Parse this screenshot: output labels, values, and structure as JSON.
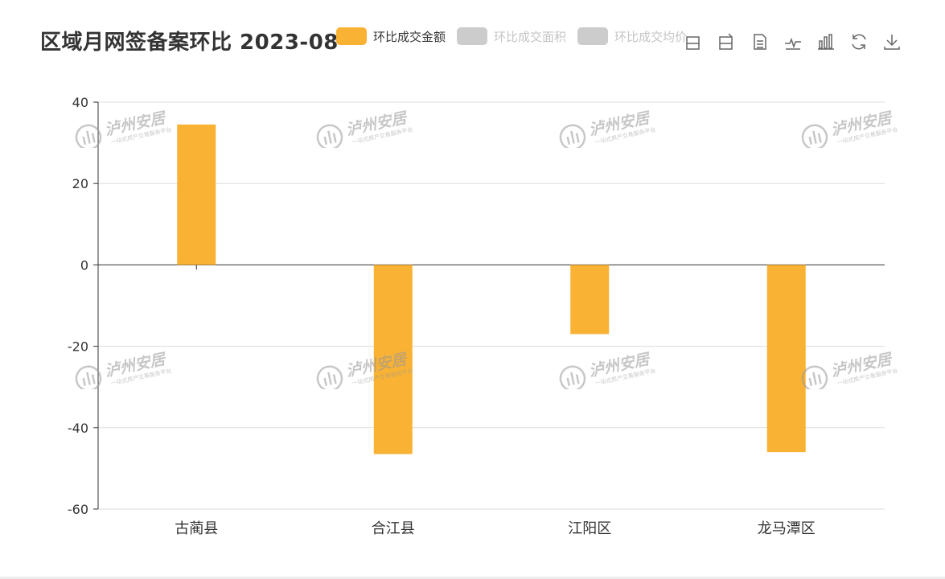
{
  "title": "区域月网签备案环比 2023-08",
  "legend": [
    {
      "label": "环比成交金额",
      "color": "#f9b233",
      "active": true
    },
    {
      "label": "环比成交面积",
      "color": "#cccccc",
      "active": false
    },
    {
      "label": "环比成交均价",
      "color": "#cccccc",
      "active": false
    }
  ],
  "toolbox": [
    {
      "name": "zoom-icon"
    },
    {
      "name": "zoom-reset-icon"
    },
    {
      "name": "data-view-icon"
    },
    {
      "name": "line-chart-icon"
    },
    {
      "name": "bar-chart-icon"
    },
    {
      "name": "restore-icon"
    },
    {
      "name": "download-icon"
    }
  ],
  "watermark": {
    "brand": "泸州安居",
    "tagline": "一站式房产交易服务平台"
  },
  "chart_data": {
    "type": "bar",
    "categories": [
      "古蔺县",
      "合江县",
      "江阳区",
      "龙马潭区"
    ],
    "series": [
      {
        "name": "环比成交金额",
        "values": [
          34.5,
          -46.5,
          -17,
          -46
        ],
        "color": "#f9b233"
      }
    ],
    "ylim": [
      -60,
      40
    ],
    "yticks": [
      -60,
      -40,
      -20,
      0,
      20,
      40
    ],
    "grid": true,
    "legend_position": "top"
  }
}
